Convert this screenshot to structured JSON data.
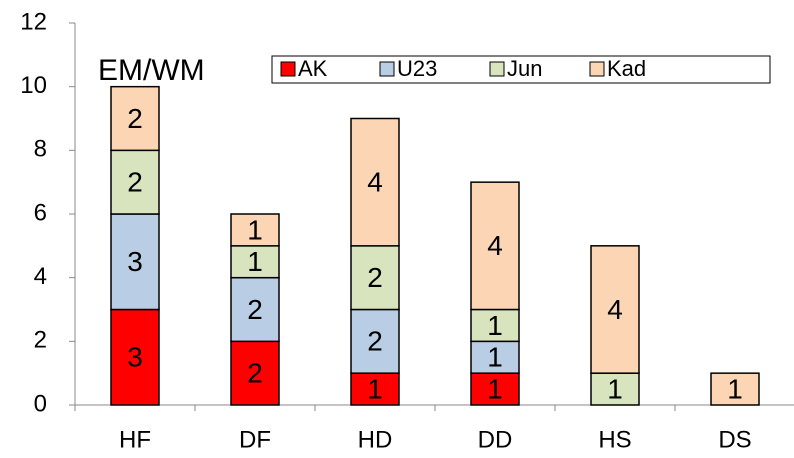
{
  "chart_data": {
    "type": "bar",
    "stacked": true,
    "title": "EM/WM",
    "categories": [
      "HF",
      "DF",
      "HD",
      "DD",
      "HS",
      "DS"
    ],
    "series": [
      {
        "name": "AK",
        "color": "#ff0000",
        "values": [
          3,
          2,
          1,
          1,
          null,
          null
        ]
      },
      {
        "name": "U23",
        "color": "#b9cde5",
        "values": [
          3,
          2,
          2,
          1,
          null,
          null
        ]
      },
      {
        "name": "Jun",
        "color": "#d7e4bd",
        "values": [
          2,
          1,
          2,
          1,
          1,
          null
        ]
      },
      {
        "name": "Kad",
        "color": "#fcd5b5",
        "values": [
          2,
          1,
          4,
          4,
          4,
          1
        ]
      }
    ],
    "ylim": [
      0,
      12
    ],
    "yticks": [
      0,
      2,
      4,
      6,
      8,
      10,
      12
    ],
    "grid": false,
    "legend": "top-right"
  }
}
